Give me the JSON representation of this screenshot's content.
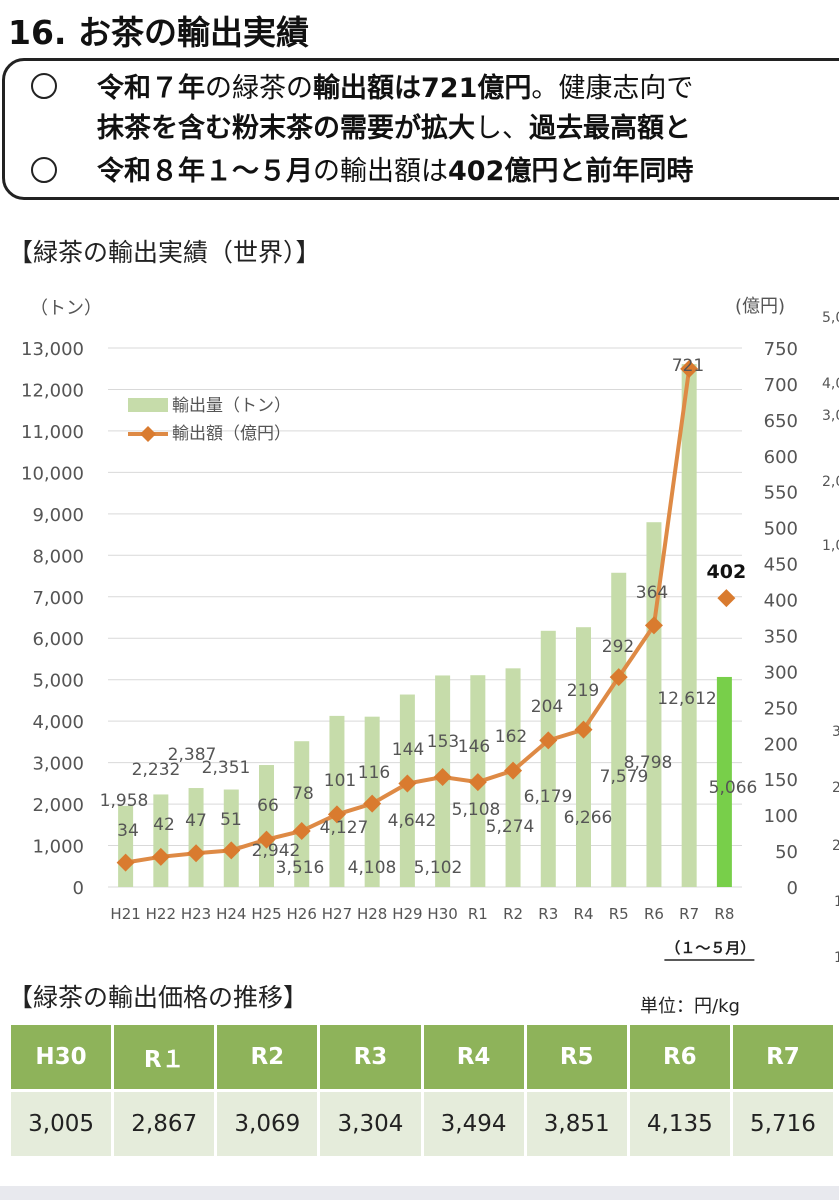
{
  "header": {
    "title": "16. お茶の輸出実績"
  },
  "summary": {
    "line1": [
      {
        "t": "令和７年",
        "b": true
      },
      {
        "t": "の緑茶の",
        "b": false
      },
      {
        "t": "輸出額は721億円",
        "b": true
      },
      {
        "t": "。健康志向で",
        "b": false
      }
    ],
    "line2": [
      {
        "t": "抹茶を含む粉末茶の需要が拡大",
        "b": true
      },
      {
        "t": "し、",
        "b": false
      },
      {
        "t": "過去最高額と",
        "b": true
      }
    ],
    "line3": [
      {
        "t": "令和８年１～５月",
        "b": true
      },
      {
        "t": "の輸出額は",
        "b": false
      },
      {
        "t": "402億円と前年同時",
        "b": true
      }
    ]
  },
  "right_partial": {
    "labels": [
      "(",
      "5,0",
      "4,0",
      "3,0",
      "2,0",
      "1,0",
      "3",
      "2",
      "2",
      "1",
      "1"
    ]
  },
  "chart_data": {
    "type": "bar+line",
    "title": "【緑茶の輸出実績（世界）】",
    "categories": [
      "H21",
      "H22",
      "H23",
      "H24",
      "H25",
      "H26",
      "H27",
      "H28",
      "H29",
      "H30",
      "R1",
      "R2",
      "R3",
      "R4",
      "R5",
      "R6",
      "R7",
      "R8"
    ],
    "period_note": "（１～５月）",
    "y_left": {
      "label": "（トン）",
      "range": [
        0,
        13000
      ],
      "ticks": [
        "0",
        "1,000",
        "2,000",
        "3,000",
        "4,000",
        "5,000",
        "6,000",
        "7,000",
        "8,000",
        "9,000",
        "10,000",
        "11,000",
        "12,000",
        "13,000"
      ]
    },
    "y_right": {
      "label": "(億円)",
      "range": [
        0,
        750
      ],
      "ticks": [
        "0",
        "50",
        "100",
        "150",
        "200",
        "250",
        "300",
        "350",
        "400",
        "450",
        "500",
        "550",
        "600",
        "650",
        "700",
        "750"
      ]
    },
    "legend": {
      "placement": "top-left",
      "bar_name": "輸出量（トン）",
      "line_name": "輸出額（億円）"
    },
    "volume": {
      "values": [
        1958,
        2232,
        2387,
        2351,
        2942,
        3516,
        4127,
        4108,
        4642,
        5102,
        5108,
        5274,
        6179,
        6266,
        7579,
        8798,
        12612,
        5066
      ],
      "labels": [
        "1,958",
        "2,232",
        "2,387",
        "2,351",
        "2,942",
        "3,516",
        "4,127",
        "4,108",
        "4,642",
        "5,102",
        "5,108",
        "5,274",
        "6,179",
        "6,266",
        "7,579",
        "8,798",
        "12,612",
        "5,066"
      ]
    },
    "value": {
      "values": [
        34,
        42,
        47,
        51,
        66,
        78,
        101,
        116,
        144,
        153,
        146,
        162,
        204,
        219,
        292,
        364,
        721
      ],
      "labels": [
        "34",
        "42",
        "47",
        "51",
        "66",
        "78",
        "101",
        "116",
        "144",
        "153",
        "146",
        "162",
        "204",
        "219",
        "292",
        "364",
        "721"
      ],
      "partial_value": 402,
      "partial_label": "402"
    },
    "colors": {
      "bar": "#c6dcaa",
      "bar_partial": "#78cf4a",
      "line": "#de8a45",
      "marker": "#d97b2f",
      "grid": "#d9d9d9"
    }
  },
  "price_table": {
    "title": "【緑茶の輸出価格の推移】",
    "unit": "単位：円/kg",
    "headers": [
      "H30",
      "R１",
      "R2",
      "R3",
      "R4",
      "R5",
      "R6",
      "R7"
    ],
    "values": [
      "3,005",
      "2,867",
      "3,069",
      "3,304",
      "3,494",
      "3,851",
      "4,135",
      "5,716"
    ]
  }
}
